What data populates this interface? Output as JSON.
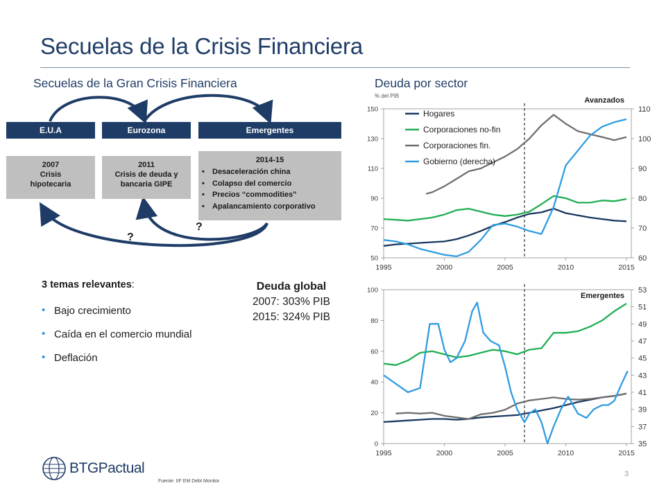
{
  "title": "Secuelas de la Crisis Financiera",
  "left_section": {
    "title": "Secuelas de la Gran Crisis Financiera",
    "regions": [
      "E.U.A",
      "Eurozona",
      "Emergentes"
    ],
    "box1": {
      "year": "2007",
      "line1": "Crisis",
      "line2": "hipotecaria"
    },
    "box2": {
      "year": "2011",
      "line1": "Crisis de deuda y",
      "line2": "bancaria GIPE"
    },
    "box3": {
      "year": "2014-15",
      "items": [
        "Desaceleración china",
        "Colapso del comercio",
        "Precios “commodities”",
        "Apalancamiento corporativo"
      ]
    },
    "question_marks": [
      "?",
      "?"
    ]
  },
  "themes": {
    "title": "3 temas relevantes",
    "colon": ":",
    "items": [
      "Bajo crecimiento",
      "Caída en el comercio mundial",
      "Deflación"
    ]
  },
  "global_debt": {
    "title": "Deuda global",
    "line1": "2007:  303% PIB",
    "line2": "2015:  324% PIB"
  },
  "right_section": {
    "title": "Deuda por sector",
    "subtitle": "% del PIB"
  },
  "colors": {
    "navy": "#1f3c66",
    "hogares": "#17375e",
    "corp_nofin": "#1fae52",
    "corp_fin": "#6e6e6e",
    "gobierno": "#2e9be0"
  },
  "chart_data": [
    {
      "type": "line",
      "title": "Avanzados",
      "x_ticks": [
        1995,
        2000,
        2005,
        2010,
        2015
      ],
      "xlim": [
        1995,
        2015.4
      ],
      "ylim": [
        50,
        150
      ],
      "y_ticks": [
        50,
        70,
        90,
        110,
        130,
        150
      ],
      "y2lim": [
        60,
        110
      ],
      "y2_ticks": [
        60,
        70,
        80,
        90,
        100,
        110
      ],
      "vline_x": 2006.6,
      "legend": "top-left",
      "series": [
        {
          "name": "Hogares",
          "axis": "left",
          "points": [
            [
              1995,
              58
            ],
            [
              1996,
              59
            ],
            [
              1997,
              59.5
            ],
            [
              1998,
              60
            ],
            [
              1999,
              60.5
            ],
            [
              2000,
              61
            ],
            [
              2001,
              62.5
            ],
            [
              2002,
              65
            ],
            [
              2003,
              68
            ],
            [
              2004,
              71.5
            ],
            [
              2005,
              74
            ],
            [
              2006,
              77
            ],
            [
              2007,
              79.5
            ],
            [
              2008,
              80.5
            ],
            [
              2009,
              83
            ],
            [
              2010,
              80
            ],
            [
              2011,
              78.5
            ],
            [
              2012,
              77
            ],
            [
              2013,
              76
            ],
            [
              2014,
              75
            ],
            [
              2015,
              74.5
            ]
          ]
        },
        {
          "name": "Corporaciones no-fin",
          "axis": "left",
          "points": [
            [
              1995,
              76
            ],
            [
              1996,
              75.5
            ],
            [
              1997,
              75
            ],
            [
              1998,
              76
            ],
            [
              1999,
              77
            ],
            [
              2000,
              79
            ],
            [
              2001,
              82
            ],
            [
              2002,
              83
            ],
            [
              2003,
              81
            ],
            [
              2004,
              79
            ],
            [
              2005,
              78
            ],
            [
              2006,
              79
            ],
            [
              2007,
              81
            ],
            [
              2008,
              86
            ],
            [
              2009,
              91.5
            ],
            [
              2010,
              90
            ],
            [
              2011,
              87
            ],
            [
              2012,
              87
            ],
            [
              2013,
              88.5
            ],
            [
              2014,
              88
            ],
            [
              2015,
              89.5
            ]
          ]
        },
        {
          "name": "Corporaciones fin.",
          "axis": "left",
          "points": [
            [
              1998.5,
              93
            ],
            [
              1999,
              94
            ],
            [
              2000,
              98
            ],
            [
              2001,
              103
            ],
            [
              2002,
              108
            ],
            [
              2003,
              110
            ],
            [
              2004,
              114
            ],
            [
              2005,
              118
            ],
            [
              2006,
              123
            ],
            [
              2007,
              130
            ],
            [
              2008,
              139
            ],
            [
              2009,
              146
            ],
            [
              2010,
              140
            ],
            [
              2011,
              135
            ],
            [
              2012,
              133
            ],
            [
              2013,
              131
            ],
            [
              2014,
              129
            ],
            [
              2015,
              131
            ]
          ]
        },
        {
          "name": "Gobierno (derecha)",
          "axis": "right",
          "points": [
            [
              1995,
              66
            ],
            [
              1996,
              65.5
            ],
            [
              1997,
              64.5
            ],
            [
              1998,
              63
            ],
            [
              1999,
              62
            ],
            [
              2000,
              61
            ],
            [
              2001,
              60.5
            ],
            [
              2002,
              62
            ],
            [
              2003,
              66
            ],
            [
              2004,
              71
            ],
            [
              2005,
              71.5
            ],
            [
              2006,
              70.5
            ],
            [
              2007,
              69
            ],
            [
              2008,
              68
            ],
            [
              2009,
              77
            ],
            [
              2010,
              91
            ],
            [
              2011,
              96
            ],
            [
              2012,
              101
            ],
            [
              2013,
              104
            ],
            [
              2014,
              105.5
            ],
            [
              2015,
              106.5
            ]
          ]
        }
      ]
    },
    {
      "type": "line",
      "title": "Emergentes",
      "x_ticks": [
        1995,
        2000,
        2005,
        2010,
        2015
      ],
      "xlim": [
        1995,
        2015.4
      ],
      "ylim": [
        0,
        100
      ],
      "y_ticks": [
        0,
        20,
        40,
        60,
        80,
        100
      ],
      "y2lim": [
        35,
        53
      ],
      "y2_ticks": [
        35,
        37,
        39,
        41,
        43,
        45,
        47,
        49,
        51,
        53
      ],
      "vline_x": 2006.6,
      "series": [
        {
          "name": "Hogares",
          "axis": "left",
          "points": [
            [
              1995,
              14
            ],
            [
              1996,
              14.5
            ],
            [
              1997,
              15
            ],
            [
              1998,
              15.5
            ],
            [
              1999,
              16
            ],
            [
              2000,
              16
            ],
            [
              2001,
              15.5
            ],
            [
              2002,
              16
            ],
            [
              2003,
              17
            ],
            [
              2004,
              17.5
            ],
            [
              2005,
              18
            ],
            [
              2006,
              18.5
            ],
            [
              2007,
              20
            ],
            [
              2008,
              21.5
            ],
            [
              2009,
              23
            ],
            [
              2010,
              25
            ],
            [
              2011,
              27
            ],
            [
              2012,
              28.5
            ],
            [
              2013,
              30
            ],
            [
              2014,
              31
            ],
            [
              2015,
              32.5
            ]
          ]
        },
        {
          "name": "Corporaciones no-fin",
          "axis": "left",
          "points": [
            [
              1995,
              52
            ],
            [
              1996,
              51
            ],
            [
              1997,
              54
            ],
            [
              1998,
              59
            ],
            [
              1999,
              60
            ],
            [
              2000,
              58
            ],
            [
              2001,
              56
            ],
            [
              2002,
              57
            ],
            [
              2003,
              59
            ],
            [
              2004,
              61
            ],
            [
              2005,
              60
            ],
            [
              2006,
              58
            ],
            [
              2007,
              61
            ],
            [
              2008,
              62
            ],
            [
              2009,
              72
            ],
            [
              2010,
              72
            ],
            [
              2011,
              73
            ],
            [
              2012,
              76
            ],
            [
              2013,
              80
            ],
            [
              2014,
              86
            ],
            [
              2015,
              91
            ]
          ]
        },
        {
          "name": "Corporaciones fin.",
          "axis": "left",
          "points": [
            [
              1996,
              19.5
            ],
            [
              1997,
              20
            ],
            [
              1998,
              19.5
            ],
            [
              1999,
              20
            ],
            [
              2000,
              18
            ],
            [
              2001,
              17
            ],
            [
              2002,
              16
            ],
            [
              2003,
              19
            ],
            [
              2004,
              20
            ],
            [
              2005,
              22
            ],
            [
              2006,
              26
            ],
            [
              2007,
              28
            ],
            [
              2008,
              29
            ],
            [
              2009,
              30
            ],
            [
              2010,
              29
            ],
            [
              2011,
              28.5
            ],
            [
              2012,
              29
            ],
            [
              2013,
              30
            ],
            [
              2014,
              31
            ],
            [
              2015,
              32.5
            ]
          ]
        },
        {
          "name": "Gobierno (derecha)",
          "axis": "right",
          "points": [
            [
              1995,
              43
            ],
            [
              1996,
              42
            ],
            [
              1997,
              41
            ],
            [
              1998,
              41.5
            ],
            [
              1998.8,
              49
            ],
            [
              1999.5,
              49
            ],
            [
              2000,
              46
            ],
            [
              2000.5,
              44.5
            ],
            [
              2001,
              45
            ],
            [
              2001.7,
              47
            ],
            [
              2002.3,
              50.5
            ],
            [
              2002.7,
              51.5
            ],
            [
              2003.2,
              48
            ],
            [
              2003.8,
              47
            ],
            [
              2004.5,
              46.5
            ],
            [
              2005,
              44
            ],
            [
              2005.5,
              41
            ],
            [
              2006,
              39
            ],
            [
              2006.6,
              37.5
            ],
            [
              2007,
              38.5
            ],
            [
              2007.5,
              39
            ],
            [
              2008,
              37.5
            ],
            [
              2008.5,
              35
            ],
            [
              2009,
              37
            ],
            [
              2009.6,
              39
            ],
            [
              2010.2,
              40.5
            ],
            [
              2011,
              38.5
            ],
            [
              2011.7,
              38
            ],
            [
              2012.3,
              39
            ],
            [
              2013,
              39.5
            ],
            [
              2013.5,
              39.5
            ],
            [
              2014,
              40
            ],
            [
              2014.6,
              42
            ],
            [
              2015.1,
              43.5
            ]
          ]
        }
      ]
    }
  ],
  "footer": {
    "logo": "BTGPactual",
    "source": "Fuente: IIF EM Debt Monitor",
    "page": "3"
  }
}
